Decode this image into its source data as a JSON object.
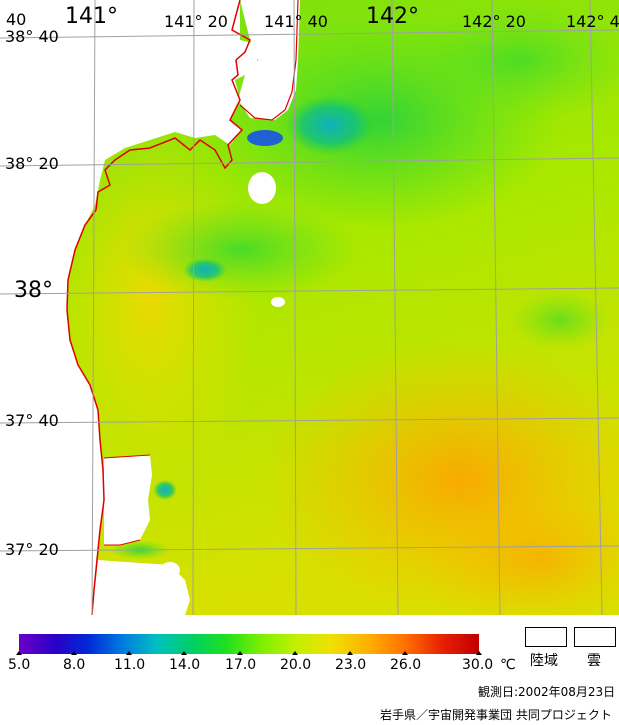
{
  "map": {
    "lon_labels": [
      "141°",
      "141° 20",
      "141° 40",
      "142°",
      "142° 20",
      "142° 4"
    ],
    "lat_labels": [
      "38° 40",
      "38° 20",
      "38°",
      "37° 40",
      "37° 20"
    ],
    "corner_label": "40",
    "colors": {
      "land": "#ffffff",
      "coastline": "#e00000",
      "grid": "#a0a0a0"
    }
  },
  "colorbar": {
    "ticks": [
      "5.0",
      "8.0",
      "11.0",
      "14.0",
      "17.0",
      "20.0",
      "23.0",
      "26.0",
      "30.0"
    ],
    "unit": "℃",
    "range": [
      5.0,
      30.0
    ]
  },
  "legend": {
    "land_label": "陸域",
    "cloud_label": "雲"
  },
  "footer": {
    "observation_date": "観測日:2002年08月23日",
    "credit": "岩手県／宇宙開発事業団 共同プロジェクト"
  }
}
